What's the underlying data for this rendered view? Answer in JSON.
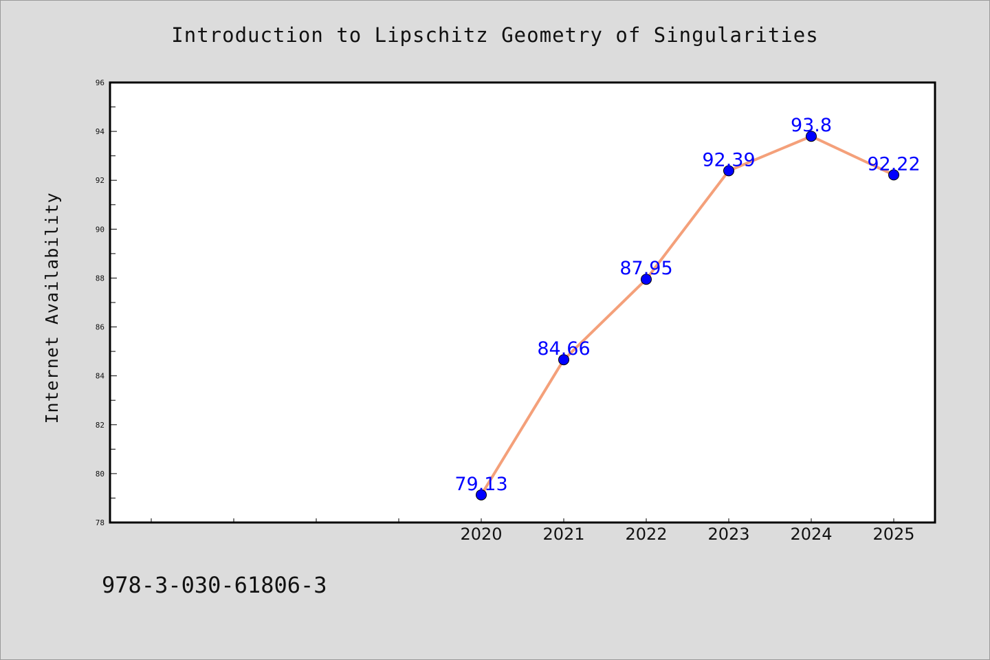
{
  "chart_data": {
    "type": "line",
    "title": "Introduction to Lipschitz Geometry of Singularities",
    "xlabel": "",
    "ylabel": "Internet Availability",
    "x": [
      "2020",
      "2021",
      "2022",
      "2023",
      "2024",
      "2025"
    ],
    "series": [
      {
        "values": [
          79.13,
          84.66,
          87.95,
          92.39,
          93.8,
          92.22
        ],
        "labels": [
          "79.13",
          "84.66",
          "87.95",
          "92.39",
          "93.8",
          "92.22"
        ],
        "line_color": "#f4a07a",
        "marker_color": "#0000ff"
      }
    ],
    "ylim": [
      78,
      96
    ],
    "yticks": [
      78,
      80,
      82,
      84,
      86,
      88,
      90,
      92,
      94,
      96
    ],
    "grid": false,
    "legend": "none"
  },
  "footer": {
    "isbn": "978-3-030-61806-3"
  },
  "colors": {
    "background": "#dcdcdc",
    "plot_background": "#ffffff",
    "label_color": "#0000ff"
  }
}
